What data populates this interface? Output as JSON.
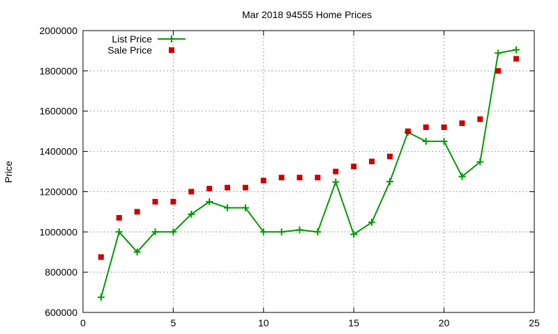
{
  "chart_data": {
    "type": "line",
    "title": "Mar 2018 94555 Home Prices",
    "xlabel": "",
    "ylabel": "Price",
    "xlim": [
      0,
      25
    ],
    "ylim": [
      600000,
      2000000
    ],
    "xticks": [
      0,
      5,
      10,
      15,
      20,
      25
    ],
    "yticks": [
      600000,
      800000,
      1000000,
      1200000,
      1400000,
      1600000,
      1800000,
      2000000
    ],
    "grid": true,
    "legend_position": "top-left",
    "series": [
      {
        "name": "List Price",
        "style": "line-with-plus-markers",
        "color": "#009900",
        "x": [
          1,
          2,
          3,
          4,
          5,
          6,
          7,
          8,
          9,
          10,
          11,
          12,
          13,
          14,
          15,
          16,
          17,
          18,
          19,
          20,
          21,
          22,
          23,
          24
        ],
        "y": [
          675000,
          1000000,
          900000,
          1000000,
          1000000,
          1088000,
          1150000,
          1120000,
          1120000,
          1000000,
          1000000,
          1010000,
          1000000,
          1248000,
          988000,
          1048000,
          1250000,
          1495000,
          1450000,
          1450000,
          1275000,
          1348000,
          1888000,
          1905000
        ]
      },
      {
        "name": "Sale Price",
        "style": "square-points",
        "color": "#cc0000",
        "x": [
          1,
          2,
          3,
          4,
          5,
          6,
          7,
          8,
          9,
          10,
          11,
          12,
          13,
          14,
          15,
          16,
          17,
          18,
          19,
          20,
          21,
          22,
          23,
          24
        ],
        "y": [
          875000,
          1070000,
          1100000,
          1150000,
          1150000,
          1200000,
          1215000,
          1220000,
          1220000,
          1255000,
          1270000,
          1270000,
          1270000,
          1300000,
          1325000,
          1350000,
          1375000,
          1500000,
          1520000,
          1520000,
          1540000,
          1560000,
          1800000,
          1860000
        ]
      }
    ]
  }
}
